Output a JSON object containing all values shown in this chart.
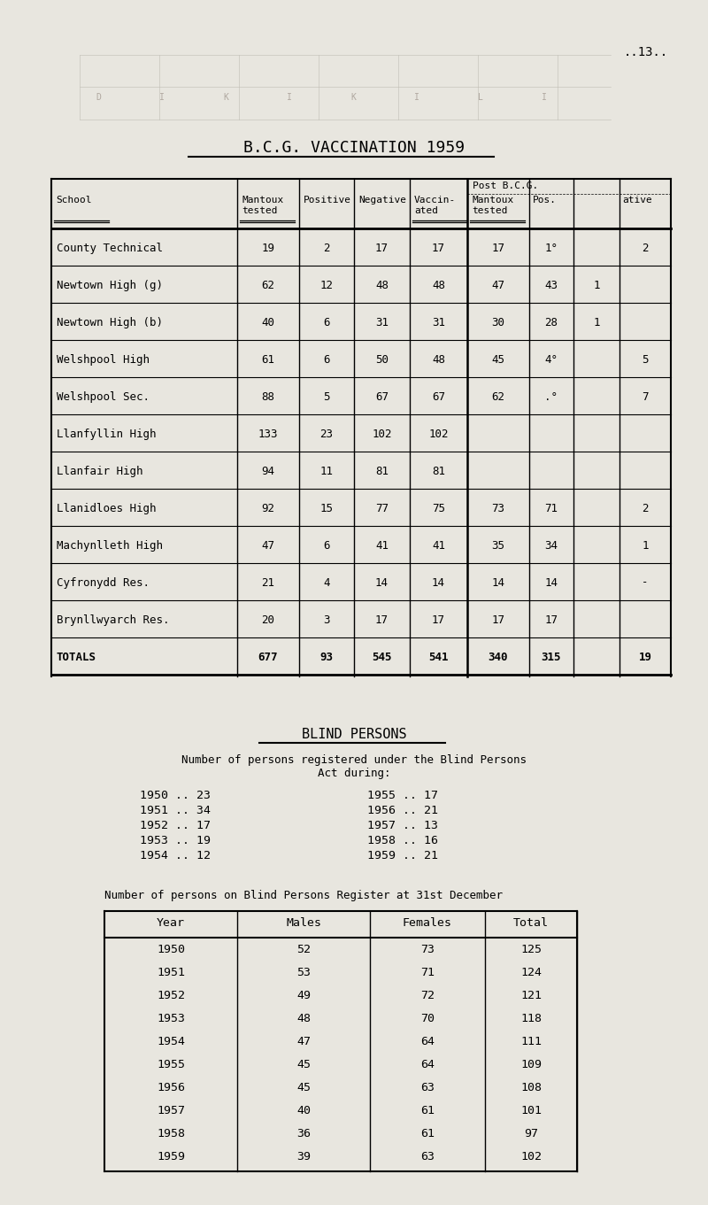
{
  "bg_color": "#e8e6df",
  "title_bcg": "B.C.G. VACCINATION 1959",
  "page_number": "..13..",
  "bcg_subheader1": "Post B.C.G.",
  "bcg_rows": [
    [
      "County Technical",
      "19",
      "2",
      "17",
      "17",
      "17",
      "1°",
      "",
      "2"
    ],
    [
      "Newtown High (g)",
      "62",
      "12",
      "48",
      "48",
      "47",
      "43",
      "1",
      ""
    ],
    [
      "Newtown High (b)",
      "40",
      "6",
      "31",
      "31",
      "30",
      "28",
      "1",
      ""
    ],
    [
      "Welshpool High",
      "61",
      "6",
      "50",
      "48",
      "45",
      "4°",
      "",
      "5"
    ],
    [
      "Welshpool Sec.",
      "88",
      "5",
      "67",
      "67",
      "62",
      ".°",
      "",
      "7"
    ],
    [
      "Llanfyllin High",
      "133",
      "23",
      "102",
      "102",
      "",
      "",
      "",
      ""
    ],
    [
      "Llanfair High",
      "94",
      "11",
      "81",
      "81",
      "",
      "",
      "",
      ""
    ],
    [
      "Llanidloes High",
      "92",
      "15",
      "77",
      "75",
      "73",
      "71",
      "",
      "2"
    ],
    [
      "Machynlleth High",
      "47",
      "6",
      "41",
      "41",
      "35",
      "34",
      "",
      "1"
    ],
    [
      "Cyfronydd Res.",
      "21",
      "4",
      "14",
      "14",
      "14",
      "14",
      "",
      "-"
    ],
    [
      "Brynllwyarch Res.",
      "20",
      "3",
      "17",
      "17",
      "17",
      "17",
      "",
      ""
    ],
    [
      "TOTALS",
      "677",
      "93",
      "545",
      "541",
      "340",
      "315",
      "",
      "19"
    ]
  ],
  "blind_title": "BLIND PERSONS",
  "blind_subtitle1": "Number of persons registered under the Blind Persons",
  "blind_subtitle2": "Act during:",
  "blind_years_left": [
    [
      "1950",
      "23"
    ],
    [
      "1951",
      "34"
    ],
    [
      "1952",
      "17"
    ],
    [
      "1953",
      "19"
    ],
    [
      "1954",
      "12"
    ]
  ],
  "blind_years_right": [
    [
      "1955",
      "17"
    ],
    [
      "1956",
      "21"
    ],
    [
      "1957",
      "13"
    ],
    [
      "1958",
      "16"
    ],
    [
      "1959",
      "21"
    ]
  ],
  "blind_register_title": "Number of persons on Blind Persons Register at 31st December",
  "blind_register_headers": [
    "Year",
    "Males",
    "Females",
    "Total"
  ],
  "blind_register_rows": [
    [
      "1950",
      "52",
      "73",
      "125"
    ],
    [
      "1951",
      "53",
      "71",
      "124"
    ],
    [
      "1952",
      "49",
      "72",
      "121"
    ],
    [
      "1953",
      "48",
      "70",
      "118"
    ],
    [
      "1954",
      "47",
      "64",
      "111"
    ],
    [
      "1955",
      "45",
      "64",
      "109"
    ],
    [
      "1956",
      "45",
      "63",
      "108"
    ],
    [
      "1957",
      "40",
      "61",
      "101"
    ],
    [
      "1958",
      "36",
      "61",
      "97"
    ],
    [
      "1959",
      "39",
      "63",
      "102"
    ]
  ]
}
